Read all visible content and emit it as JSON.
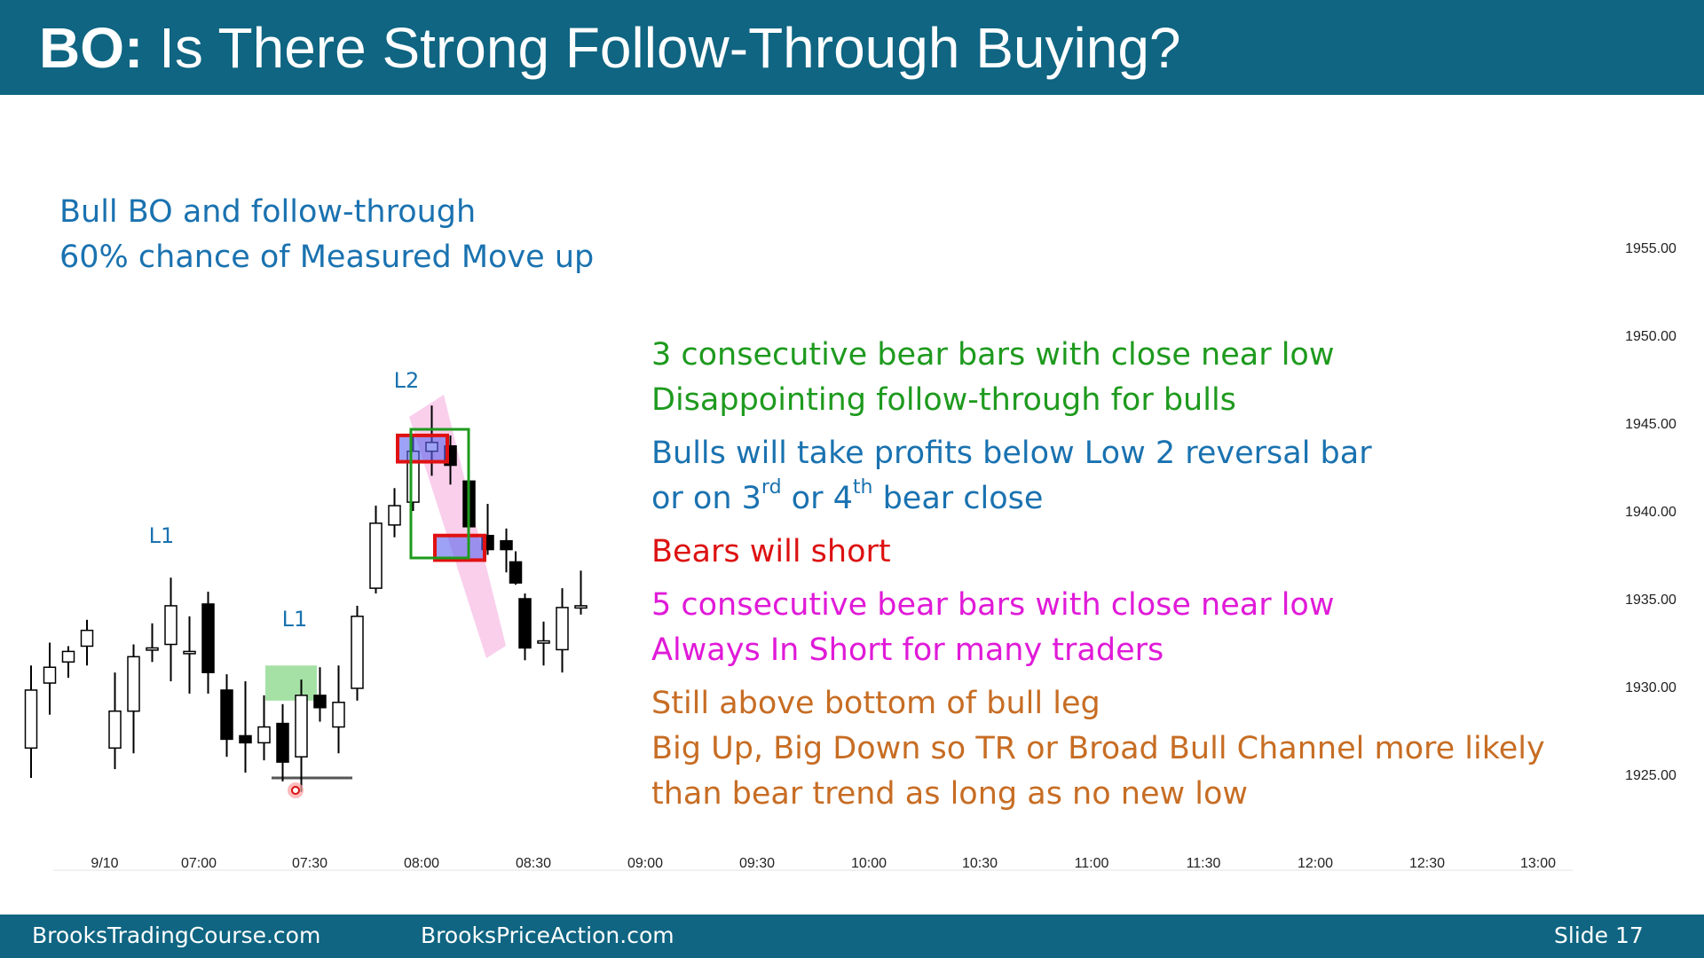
{
  "header": {
    "title_prefix": "BO:",
    "title_rest": " Is There Strong Follow-Through Buying?"
  },
  "annotations": {
    "bull_bo": [
      "Bull BO and follow-through",
      "60% chance of Measured Move up"
    ],
    "bear_bars": [
      "3 consecutive bear bars with close near low",
      "Disappointing follow-through for bulls"
    ],
    "profits_line1": "Bulls will take profits below Low 2 reversal bar",
    "profits_line2": {
      "a": "or on 3",
      "sup1": "rd",
      "b": " or 4",
      "sup2": "th",
      "c": " bear close"
    },
    "bears_short": "Bears will short",
    "always_in": [
      "5 consecutive bear bars with close near low",
      "Always In Short for many traders"
    ],
    "bull_leg": [
      "Still above bottom of bull leg",
      "Big Up, Big Down so TR or Broad Bull Channel more likely",
      "than bear trend as long as no new low"
    ]
  },
  "colors": {
    "header_bg": "#0f6582",
    "blue_text": "#1a72b0",
    "green_text": "#1e9a1e",
    "red_text": "#dd1111",
    "magenta_text": "#e01ad8",
    "orange_text": "#c76d24",
    "bear_bar": "#000000",
    "bull_bar": "#ffffff"
  },
  "footer": {
    "left": "BrooksTradingCourse.com",
    "middle": "BrooksPriceAction.com",
    "right": "Slide  17"
  },
  "chart_data": {
    "type": "candlestick",
    "x_ticks": [
      "9/10",
      "07:00",
      "07:30",
      "08:00",
      "08:30",
      "09:00",
      "09:30",
      "10:00",
      "10:30",
      "11:00",
      "11:30",
      "12:00",
      "12:30",
      "13:00"
    ],
    "y_ticks": [
      "1955.00",
      "1950.00",
      "1945.00",
      "1940.00",
      "1935.00",
      "1930.00",
      "1925.00"
    ],
    "y_tick_values": [
      1955,
      1950,
      1945,
      1940,
      1935,
      1930,
      1925
    ],
    "ylim": [
      1921.3,
      1960
    ],
    "bar_labels": [
      {
        "text": "L1",
        "bar": 13
      },
      {
        "text": "L1",
        "bar": 26
      },
      {
        "text": "L2",
        "bar": 43
      }
    ],
    "bars": [
      {
        "o": 1926.5,
        "h": 1931.2,
        "l": 1924.8,
        "c": 1929.8
      },
      {
        "o": 1930.2,
        "h": 1932.5,
        "l": 1928.4,
        "c": 1931.1
      },
      {
        "o": 1931.4,
        "h": 1932.3,
        "l": 1930.5,
        "c": 1932.0
      },
      {
        "o": 1932.3,
        "h": 1933.8,
        "l": 1931.2,
        "c": 1933.2
      },
      {
        "o": 1926.5,
        "h": 1930.8,
        "l": 1925.3,
        "c": 1928.6
      },
      {
        "o": 1928.6,
        "h": 1932.4,
        "l": 1926.2,
        "c": 1931.7
      },
      {
        "o": 1932.2,
        "h": 1933.6,
        "l": 1931.4,
        "c": 1932.2
      },
      {
        "o": 1932.4,
        "h": 1936.2,
        "l": 1930.3,
        "c": 1934.6
      },
      {
        "o": 1932.0,
        "h": 1934.0,
        "l": 1929.6,
        "c": 1932.0
      },
      {
        "o": 1934.7,
        "h": 1935.4,
        "l": 1929.6,
        "c": 1930.8
      },
      {
        "o": 1929.8,
        "h": 1930.7,
        "l": 1926.0,
        "c": 1927.0
      },
      {
        "o": 1927.2,
        "h": 1930.3,
        "l": 1925.1,
        "c": 1926.8
      },
      {
        "o": 1926.8,
        "h": 1929.5,
        "l": 1925.8,
        "c": 1927.7
      },
      {
        "o": 1927.9,
        "h": 1929.0,
        "l": 1924.6,
        "c": 1925.7
      },
      {
        "o": 1926.0,
        "h": 1930.4,
        "l": 1924.0,
        "c": 1929.5
      },
      {
        "o": 1929.5,
        "h": 1931.1,
        "l": 1928.0,
        "c": 1928.8
      },
      {
        "o": 1927.7,
        "h": 1931.2,
        "l": 1926.2,
        "c": 1929.1
      },
      {
        "o": 1929.9,
        "h": 1934.6,
        "l": 1929.2,
        "c": 1934.0
      },
      {
        "o": 1935.6,
        "h": 1940.3,
        "l": 1935.3,
        "c": 1939.3
      },
      {
        "o": 1939.2,
        "h": 1941.3,
        "l": 1938.5,
        "c": 1940.3
      },
      {
        "o": 1940.5,
        "h": 1944.3,
        "l": 1940.0,
        "c": 1943.4
      },
      {
        "o": 1943.4,
        "h": 1946.0,
        "l": 1942.0,
        "c": 1943.9
      },
      {
        "o": 1943.7,
        "h": 1944.3,
        "l": 1941.5,
        "c": 1942.6
      },
      {
        "o": 1941.7,
        "h": 1941.8,
        "l": 1938.7,
        "c": 1939.1
      },
      {
        "o": 1938.6,
        "h": 1940.4,
        "l": 1937.5,
        "c": 1937.8
      },
      {
        "o": 1938.3,
        "h": 1939.0,
        "l": 1936.5,
        "c": 1937.8
      },
      {
        "o": 1937.1,
        "h": 1937.7,
        "l": 1935.8,
        "c": 1935.9
      },
      {
        "o": 1935.0,
        "h": 1935.3,
        "l": 1931.5,
        "c": 1932.2
      },
      {
        "o": 1932.6,
        "h": 1933.7,
        "l": 1931.2,
        "c": 1932.6
      },
      {
        "o": 1932.1,
        "h": 1935.6,
        "l": 1930.8,
        "c": 1934.5
      },
      {
        "o": 1934.6,
        "h": 1936.6,
        "l": 1934.1,
        "c": 1934.6
      }
    ],
    "bar_slots": [
      0,
      2,
      4,
      6,
      9,
      11,
      13,
      15,
      17,
      19,
      21,
      23,
      25,
      27,
      29,
      31,
      33,
      35,
      37,
      39,
      41,
      43,
      45,
      47,
      49,
      51,
      52,
      53,
      55,
      57,
      59
    ],
    "bar_slot_note": "",
    "lines": [
      {
        "y": 1924.8
      }
    ]
  }
}
